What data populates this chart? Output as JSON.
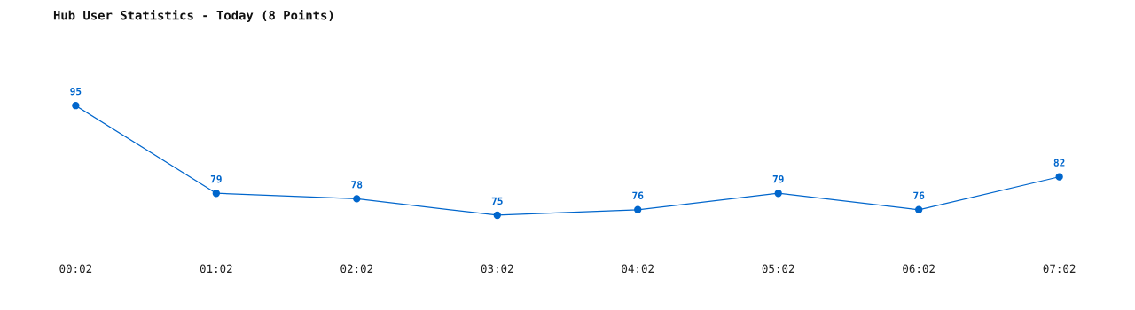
{
  "chart_data": {
    "type": "line",
    "title": "Hub User Statistics - Today (8 Points)",
    "categories": [
      "00:02",
      "01:02",
      "02:02",
      "03:02",
      "04:02",
      "05:02",
      "06:02",
      "07:02"
    ],
    "series": [
      {
        "color": "#0066cc",
        "values": [
          95,
          79,
          78,
          75,
          76,
          79,
          76,
          82
        ]
      }
    ],
    "data_labels": true,
    "marker": "circle",
    "line_style": "solid",
    "grid": false,
    "legend": false
  }
}
